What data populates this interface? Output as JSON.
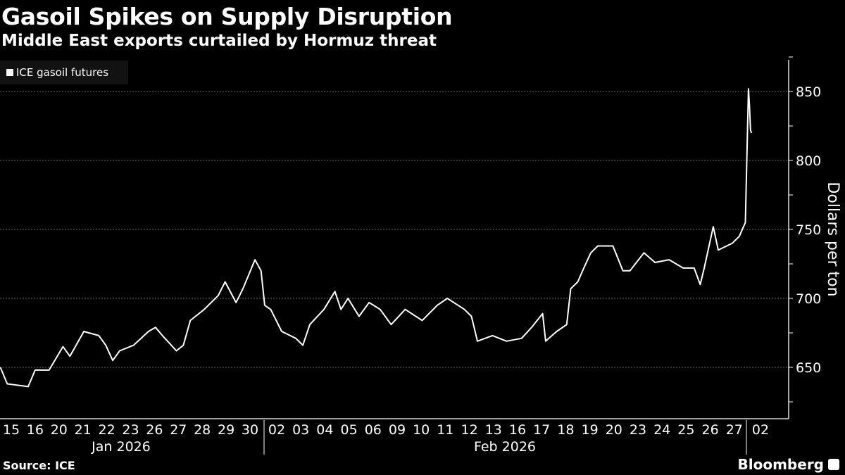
{
  "title": "Gasoil Spikes on Supply Disruption",
  "subtitle": "Middle East exports curtailed by Hormuz threat",
  "source": "Source: ICE",
  "brand": "Bloomberg",
  "colors": {
    "background": "#000000",
    "line": "#ffffff",
    "grid": "#666666"
  },
  "chart_data": {
    "type": "line",
    "legend": {
      "entries": [
        "ICE gasoil futures"
      ],
      "placement": "top-left"
    },
    "ylabel": "Dollars per ton",
    "ylim": [
      612,
      876
    ],
    "yticks": [
      650,
      700,
      750,
      800,
      850
    ],
    "grid": true,
    "categories": [
      "15",
      "16",
      "20",
      "21",
      "22",
      "23",
      "26",
      "27",
      "28",
      "29",
      "30",
      "02",
      "03",
      "04",
      "05",
      "06",
      "09",
      "10",
      "11",
      "12",
      "13",
      "16",
      "17",
      "18",
      "19",
      "20",
      "23",
      "24",
      "25",
      "26",
      "27",
      "02"
    ],
    "category_dates": [
      "01-15",
      "01-16",
      "01-20",
      "01-21",
      "01-22",
      "01-23",
      "01-26",
      "01-27",
      "01-28",
      "01-29",
      "01-30",
      "02-02",
      "02-03",
      "02-04",
      "02-05",
      "02-06",
      "02-09",
      "02-10",
      "02-11",
      "02-12",
      "02-13",
      "02-16",
      "02-17",
      "02-18",
      "02-19",
      "02-20",
      "02-23",
      "02-24",
      "02-25",
      "02-26",
      "02-27",
      "03-02"
    ],
    "months": [
      {
        "label": "Jan 2026"
      },
      {
        "label": "Feb 2026"
      }
    ],
    "series": [
      {
        "name": "ICE gasoil futures",
        "points": [
          [
            "01-15 01",
            650
          ],
          [
            "01-15 08",
            638
          ],
          [
            "01-16 05",
            636
          ],
          [
            "01-16 12",
            648
          ],
          [
            "01-20 02",
            648
          ],
          [
            "01-20 16",
            665
          ],
          [
            "01-20 23",
            658
          ],
          [
            "01-21 13",
            676
          ],
          [
            "01-22 04",
            673
          ],
          [
            "01-22 11",
            666
          ],
          [
            "01-22 18",
            655
          ],
          [
            "01-23 01",
            662
          ],
          [
            "01-23 15",
            666
          ],
          [
            "01-26 06",
            676
          ],
          [
            "01-26 13",
            679
          ],
          [
            "01-26 20",
            673
          ],
          [
            "01-27 10",
            662
          ],
          [
            "01-27 17",
            666
          ],
          [
            "01-28 00",
            684
          ],
          [
            "01-28 14",
            692
          ],
          [
            "01-29 04",
            702
          ],
          [
            "01-29 11",
            712
          ],
          [
            "01-29 22",
            697
          ],
          [
            "01-30 05",
            707
          ],
          [
            "01-30 17",
            728
          ],
          [
            "01-30 23",
            720
          ],
          [
            "02-02 00",
            695
          ],
          [
            "02-02 06",
            692
          ],
          [
            "02-02 17",
            676
          ],
          [
            "02-03 07",
            671
          ],
          [
            "02-03 14",
            666
          ],
          [
            "02-03 21",
            681
          ],
          [
            "02-04 11",
            692
          ],
          [
            "02-04 22",
            705
          ],
          [
            "02-05 04",
            692
          ],
          [
            "02-05 11",
            700
          ],
          [
            "02-05 22",
            687
          ],
          [
            "02-06 08",
            697
          ],
          [
            "02-06 19",
            692
          ],
          [
            "02-09 06",
            681
          ],
          [
            "02-09 20",
            692
          ],
          [
            "02-10 13",
            684
          ],
          [
            "02-11 04",
            695
          ],
          [
            "02-11 14",
            700
          ],
          [
            "02-12 07",
            692
          ],
          [
            "02-12 14",
            687
          ],
          [
            "02-12 20",
            669
          ],
          [
            "02-13 11",
            673
          ],
          [
            "02-16 01",
            669
          ],
          [
            "02-16 16",
            671
          ],
          [
            "02-17 02",
            679
          ],
          [
            "02-17 13",
            689
          ],
          [
            "02-17 16",
            669
          ],
          [
            "02-18 03",
            676
          ],
          [
            "02-18 13",
            681
          ],
          [
            "02-18 17",
            707
          ],
          [
            "02-19 00",
            712
          ],
          [
            "02-19 06",
            722
          ],
          [
            "02-19 13",
            733
          ],
          [
            "02-19 20",
            738
          ],
          [
            "02-20 11",
            738
          ],
          [
            "02-20 21",
            720
          ],
          [
            "02-23 04",
            720
          ],
          [
            "02-23 18",
            733
          ],
          [
            "02-24 05",
            726
          ],
          [
            "02-24 19",
            728
          ],
          [
            "02-25 09",
            722
          ],
          [
            "02-25 20",
            722
          ],
          [
            "02-26 02",
            710
          ],
          [
            "02-26 06",
            722
          ],
          [
            "02-26 15",
            752
          ],
          [
            "02-26 20",
            735
          ],
          [
            "02-27 10",
            740
          ],
          [
            "02-27 17",
            745
          ],
          [
            "02-27 23",
            755
          ],
          [
            "03-02 00",
            852
          ],
          [
            "03-02 01",
            840
          ],
          [
            "03-02 02",
            822
          ],
          [
            "03-02 03",
            820
          ]
        ]
      }
    ]
  }
}
